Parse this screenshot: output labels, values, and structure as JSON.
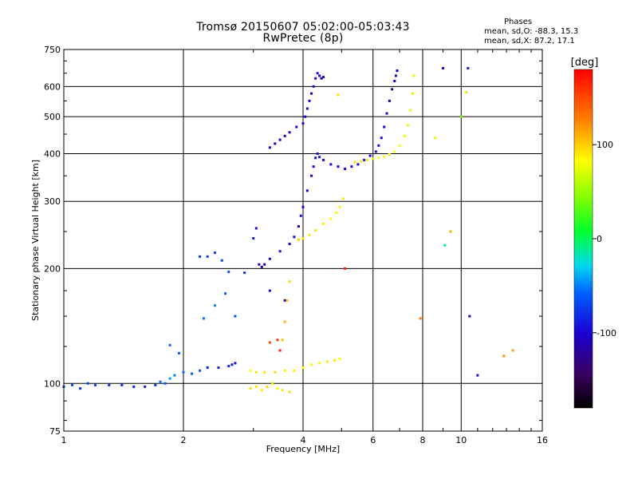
{
  "title_line1": "Tromsø 20150607 05:02:00-05:03:43",
  "title_line2": "RwPretec (8p)",
  "phase_box": {
    "heading": "Phases",
    "o_stats": "mean, sd,O: -88.3, 15.3",
    "x_stats": "mean, sd,X:  87.2, 17.1"
  },
  "colorbar": {
    "unit_label": "[deg]",
    "min": -180,
    "max": 180,
    "tick_values": [
      100,
      0,
      -100
    ],
    "tick_labels": [
      "100",
      "0",
      "-100"
    ]
  },
  "chart_data": {
    "type": "scatter",
    "title": "Tromsø 20150607 05:02:00-05:03:43 RwPretec (8p)",
    "xlabel": "Frequency [MHz]",
    "ylabel": "Stationary phase Virtual Height [km]",
    "x_scale": "log",
    "y_scale": "log",
    "xlim": [
      1,
      16
    ],
    "ylim": [
      75,
      750
    ],
    "x_ticks": [
      1,
      2,
      4,
      6,
      8,
      10,
      16
    ],
    "x_tick_labels": [
      "1",
      "2",
      "4",
      "6",
      "8",
      "10",
      "16"
    ],
    "y_ticks": [
      75,
      100,
      200,
      300,
      400,
      500,
      600,
      750
    ],
    "y_tick_labels": [
      "75",
      "100",
      "200",
      "300",
      "400",
      "500",
      "600",
      "750"
    ],
    "grid": true,
    "color_variable": "phase [deg]",
    "series": [
      {
        "mode": "O",
        "traces": [
          {
            "x": [
              1.0,
              1.05,
              1.1,
              1.15,
              1.2,
              1.3,
              1.4,
              1.5,
              1.6,
              1.7,
              1.75,
              1.8,
              1.85,
              1.9,
              2.0,
              2.1,
              2.2,
              2.3,
              2.45,
              2.6,
              2.65,
              2.7
            ],
            "y": [
              98,
              99,
              97,
              100,
              99,
              99,
              99,
              98,
              98,
              99,
              101,
              100,
              103,
              105,
              107,
              106,
              108,
              110,
              110,
              111,
              112,
              113
            ],
            "phase": [
              -75,
              -70,
              -80,
              -72,
              -78,
              -85,
              -85,
              -88,
              -90,
              -80,
              -55,
              -60,
              -45,
              -50,
              -55,
              -60,
              -65,
              -80,
              -85,
              -88,
              -90,
              -95
            ]
          },
          {
            "x": [
              2.2,
              2.3,
              2.4,
              2.5,
              2.6
            ],
            "y": [
              215,
              215,
              220,
              210,
              196
            ],
            "phase": [
              -75,
              -70,
              -72,
              -68,
              -65
            ]
          },
          {
            "x": [
              3.1,
              3.15,
              3.2,
              3.3,
              3.5,
              3.7,
              3.8,
              3.9,
              3.95,
              4.0,
              4.1,
              4.2,
              4.25,
              4.3,
              4.35,
              4.4,
              4.5,
              4.7,
              4.9,
              5.1,
              5.3,
              5.5,
              5.7,
              5.9,
              6.1,
              6.2,
              6.3,
              6.4,
              6.5,
              6.6,
              6.7,
              6.8,
              6.85,
              6.9
            ],
            "y": [
              205,
              202,
              205,
              212,
              222,
              232,
              242,
              258,
              275,
              290,
              320,
              350,
              370,
              390,
              400,
              392,
              385,
              375,
              370,
              365,
              370,
              375,
              385,
              395,
              405,
              420,
              440,
              470,
              510,
              550,
              590,
              620,
              640,
              660
            ],
            "phase": [
              -115,
              -125,
              -120,
              -110,
              -105,
              -105,
              -100,
              -100,
              -98,
              -98,
              -105,
              -110,
              -100,
              -95,
              -90,
              -92,
              -95,
              -100,
              -102,
              -100,
              -98,
              -96,
              -95,
              -94,
              -92,
              -92,
              -95,
              -100,
              -105,
              -108,
              -110,
              -112,
              -120,
              -110
            ]
          },
          {
            "x": [
              3.3,
              3.4,
              3.5,
              3.6,
              3.7,
              3.85,
              4.0,
              4.05,
              4.1,
              4.15,
              4.2,
              4.25,
              4.3,
              4.35,
              4.4,
              4.45,
              4.5
            ],
            "y": [
              415,
              425,
              435,
              445,
              455,
              470,
              480,
              500,
              525,
              550,
              575,
              600,
              630,
              650,
              640,
              630,
              635
            ],
            "phase": [
              -100,
              -102,
              -105,
              -100,
              -98,
              -95,
              -100,
              -102,
              -105,
              -105,
              -108,
              -110,
              -100,
              -95,
              -100,
              -105,
              -100
            ]
          },
          {
            "x": [
              1.85,
              1.95,
              2.25,
              2.4,
              2.55,
              2.7,
              2.85,
              3.0,
              3.05,
              3.3,
              3.6,
              9.0,
              10.4,
              10.5,
              11.0
            ],
            "y": [
              126,
              120,
              148,
              160,
              172,
              150,
              195,
              240,
              255,
              175,
              165,
              670,
              670,
              150,
              105
            ],
            "phase": [
              -55,
              -60,
              -55,
              -50,
              -60,
              -65,
              -80,
              -90,
              -95,
              -100,
              -105,
              -100,
              -90,
              -100,
              -95
            ]
          }
        ]
      },
      {
        "mode": "X",
        "traces": [
          {
            "x": [
              2.95,
              3.05,
              3.2,
              3.4,
              3.6,
              3.8,
              4.0,
              4.2,
              4.4,
              4.6,
              4.8,
              4.95
            ],
            "y": [
              108,
              107,
              107,
              107,
              108,
              108,
              110,
              112,
              113,
              114,
              115,
              116
            ],
            "phase": [
              85,
              90,
              92,
              95,
              88,
              90,
              82,
              86,
              88,
              90,
              92,
              85
            ]
          },
          {
            "x": [
              2.95,
              3.05,
              3.15,
              3.25,
              3.35,
              3.45,
              3.55,
              3.7
            ],
            "y": [
              97,
              98,
              96,
              98,
              100,
              97,
              96,
              95
            ],
            "phase": [
              95,
              92,
              88,
              98,
              90,
              86,
              92,
              95
            ]
          },
          {
            "x": [
              3.9,
              4.0,
              4.15,
              4.3,
              4.5,
              4.7,
              4.85,
              4.95,
              5.05
            ],
            "y": [
              238,
              240,
              245,
              252,
              262,
              270,
              280,
              290,
              305
            ],
            "phase": [
              100,
              95,
              92,
              90,
              88,
              85,
              86,
              88,
              90
            ]
          },
          {
            "x": [
              5.4,
              5.6,
              5.8,
              6.0,
              6.2,
              6.4,
              6.6,
              6.8,
              7.0,
              7.2,
              7.35,
              7.45,
              7.55,
              7.6
            ],
            "y": [
              380,
              382,
              385,
              388,
              390,
              393,
              398,
              405,
              420,
              445,
              475,
              520,
              575,
              640
            ],
            "phase": [
              95,
              92,
              90,
              88,
              86,
              85,
              84,
              82,
              80,
              78,
              76,
              74,
              72,
              70
            ]
          },
          {
            "x": [
              3.55,
              3.6,
              3.65,
              3.7
            ],
            "y": [
              130,
              145,
              165,
              185
            ],
            "phase": [
              105,
              110,
              100,
              95
            ]
          }
        ]
      },
      {
        "mode": "unclassified",
        "traces": [
          {
            "x": [
              3.3,
              3.45,
              3.5,
              5.1,
              7.9,
              8.6,
              9.1,
              9.4,
              10.0,
              10.3,
              12.8,
              13.5,
              4.9
            ],
            "y": [
              128,
              130,
              122,
              200,
              148,
              440,
              230,
              250,
              500,
              580,
              118,
              122,
              570
            ],
            "phase": [
              150,
              160,
              165,
              170,
              130,
              70,
              -10,
              110,
              40,
              60,
              120,
              115,
              95
            ]
          }
        ]
      }
    ]
  }
}
